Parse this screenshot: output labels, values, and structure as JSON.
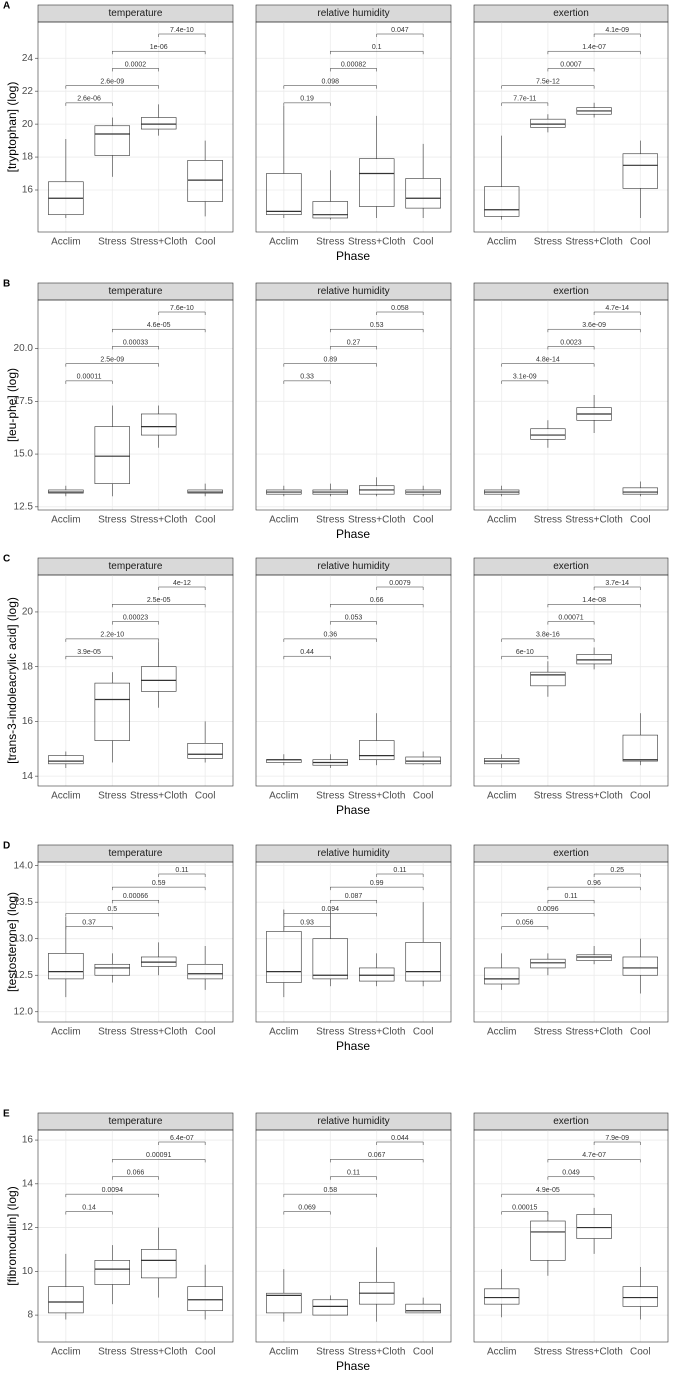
{
  "chart_data": [
    {
      "type": "box",
      "panel_label": "A",
      "ylabel": "[tryptophan] (log)",
      "xlabel": "Phase",
      "categories": [
        "Acclim",
        "Stress",
        "Stress+Cloth",
        "Cool"
      ],
      "ylim": [
        13.45,
        26.2
      ],
      "yticks": [
        16,
        18,
        20,
        22,
        24
      ],
      "grid": true,
      "facets": [
        {
          "title": "temperature",
          "boxes": [
            [
              14.3,
              14.5,
              15.5,
              16.5,
              19.1
            ],
            [
              16.8,
              18.1,
              19.4,
              19.9,
              20.4
            ],
            [
              19.3,
              19.7,
              20.0,
              20.4,
              21.2
            ],
            [
              14.4,
              15.3,
              16.6,
              17.8,
              19.0
            ]
          ],
          "pvalues": [
            "2.6e-06",
            "2.6e-09",
            "0.0002",
            "1e-06",
            "7.4e-10"
          ]
        },
        {
          "title": "relative humidity",
          "boxes": [
            [
              14.3,
              14.5,
              14.7,
              17.0,
              21.1
            ],
            [
              14.2,
              14.3,
              14.5,
              15.3,
              17.2
            ],
            [
              14.3,
              15.0,
              17.0,
              17.9,
              20.5
            ],
            [
              14.3,
              14.9,
              15.5,
              16.7,
              18.8
            ]
          ],
          "pvalues": [
            "0.19",
            "0.098",
            "0.00082",
            "0.1",
            "0.047"
          ]
        },
        {
          "title": "exertion",
          "boxes": [
            [
              14.2,
              14.4,
              14.8,
              16.2,
              19.3
            ],
            [
              19.5,
              19.8,
              20.0,
              20.3,
              20.6
            ],
            [
              20.4,
              20.6,
              20.8,
              21.0,
              21.3
            ],
            [
              14.3,
              16.1,
              17.5,
              18.2,
              19.0
            ]
          ],
          "pvalues": [
            "7.7e-11",
            "7.5e-12",
            "0.0007",
            "1.4e-07",
            "4.1e-09"
          ]
        }
      ]
    },
    {
      "type": "box",
      "panel_label": "B",
      "ylabel": "[leu-phe] (log)",
      "xlabel": "Phase",
      "categories": [
        "Acclim",
        "Stress",
        "Stress+Cloth",
        "Cool"
      ],
      "ylim": [
        12.35,
        22.3
      ],
      "yticks": [
        12.5,
        {
          "value": 15,
          "label": "15.0"
        },
        17.5,
        {
          "value": 20,
          "label": "20.0"
        }
      ],
      "grid": true,
      "facets": [
        {
          "title": "temperature",
          "boxes": [
            [
              13.0,
              13.15,
              13.2,
              13.3,
              13.5
            ],
            [
              13.0,
              13.6,
              14.9,
              16.3,
              17.3
            ],
            [
              15.3,
              15.9,
              16.3,
              16.9,
              17.3
            ],
            [
              13.0,
              13.15,
              13.2,
              13.3,
              13.6
            ]
          ],
          "pvalues": [
            "0.00011",
            "2.5e-09",
            "0.00033",
            "4.6e-05",
            "7.6e-10"
          ]
        },
        {
          "title": "relative humidity",
          "boxes": [
            [
              13.0,
              13.1,
              13.2,
              13.3,
              13.5
            ],
            [
              13.0,
              13.1,
              13.2,
              13.3,
              13.6
            ],
            [
              13.0,
              13.1,
              13.3,
              13.5,
              13.9
            ],
            [
              13.0,
              13.1,
              13.2,
              13.3,
              13.5
            ]
          ],
          "pvalues": [
            "0.33",
            "0.89",
            "0.27",
            "0.53",
            "0.058"
          ]
        },
        {
          "title": "exertion",
          "boxes": [
            [
              13.0,
              13.1,
              13.2,
              13.3,
              13.5
            ],
            [
              15.3,
              15.7,
              15.9,
              16.2,
              16.6
            ],
            [
              16.0,
              16.6,
              16.9,
              17.2,
              17.8
            ],
            [
              13.0,
              13.1,
              13.2,
              13.4,
              13.7
            ]
          ],
          "pvalues": [
            "3.1e-09",
            "4.8e-14",
            "0.0023",
            "3.6e-09",
            "4.7e-14"
          ]
        }
      ]
    },
    {
      "type": "box",
      "panel_label": "C",
      "ylabel": "[trans-3-indoleacrylic acid] (log)",
      "xlabel": "Phase",
      "categories": [
        "Acclim",
        "Stress",
        "Stress+Cloth",
        "Cool"
      ],
      "ylim": [
        13.64,
        21.35
      ],
      "yticks": [
        14,
        16,
        18,
        20
      ],
      "grid": true,
      "facets": [
        {
          "title": "temperature",
          "boxes": [
            [
              14.3,
              14.45,
              14.55,
              14.75,
              14.9
            ],
            [
              14.5,
              15.3,
              16.8,
              17.4,
              17.8
            ],
            [
              16.5,
              17.1,
              17.5,
              18.0,
              18.9
            ],
            [
              14.5,
              14.65,
              14.8,
              15.2,
              16.0
            ]
          ],
          "pvalues": [
            "3.9e-05",
            "2.2e-10",
            "0.00023",
            "2.5e-05",
            "4e-12"
          ]
        },
        {
          "title": "relative humidity",
          "boxes": [
            [
              14.4,
              14.5,
              14.6,
              14.6,
              14.8
            ],
            [
              14.3,
              14.4,
              14.5,
              14.6,
              14.8
            ],
            [
              14.4,
              14.6,
              14.75,
              15.3,
              16.3
            ],
            [
              14.4,
              14.45,
              14.55,
              14.7,
              14.9
            ]
          ],
          "pvalues": [
            "0.44",
            "0.36",
            "0.053",
            "0.66",
            "0.0079"
          ]
        },
        {
          "title": "exertion",
          "boxes": [
            [
              14.3,
              14.45,
              14.55,
              14.65,
              14.8
            ],
            [
              16.9,
              17.3,
              17.7,
              17.8,
              18.2
            ],
            [
              17.9,
              18.1,
              18.25,
              18.45,
              18.7
            ],
            [
              14.4,
              14.55,
              14.6,
              15.5,
              16.3
            ]
          ],
          "pvalues": [
            "6e-10",
            "3.8e-16",
            "0.00071",
            "1.4e-08",
            "3.7e-14"
          ]
        }
      ]
    },
    {
      "type": "box",
      "panel_label": "D",
      "ylabel": "[testosterone] (log)",
      "xlabel": "Phase",
      "categories": [
        "Acclim",
        "Stress",
        "Stress+Cloth",
        "Cool"
      ],
      "ylim": [
        11.86,
        14.05
      ],
      "yticks": [
        {
          "value": 12,
          "label": "12.0"
        },
        12.5,
        {
          "value": 13,
          "label": "13.0"
        },
        13.5,
        {
          "value": 14,
          "label": "14.0"
        }
      ],
      "grid": true,
      "facets": [
        {
          "title": "temperature",
          "boxes": [
            [
              12.2,
              12.45,
              12.55,
              12.8,
              13.3
            ],
            [
              12.4,
              12.5,
              12.6,
              12.65,
              12.8
            ],
            [
              12.5,
              12.62,
              12.68,
              12.75,
              12.95
            ],
            [
              12.3,
              12.45,
              12.52,
              12.65,
              12.9
            ]
          ],
          "pvalues": [
            "0.37",
            "0.5",
            "0.00066",
            "0.59",
            "0.11"
          ]
        },
        {
          "title": "relative humidity",
          "boxes": [
            [
              12.2,
              12.4,
              12.55,
              13.1,
              13.4
            ],
            [
              12.35,
              12.45,
              12.5,
              13.0,
              13.4
            ],
            [
              12.35,
              12.42,
              12.5,
              12.6,
              12.8
            ],
            [
              12.35,
              12.42,
              12.55,
              12.95,
              13.5
            ]
          ],
          "pvalues": [
            "0.93",
            "0.094",
            "0.087",
            "0.99",
            "0.11"
          ]
        },
        {
          "title": "exertion",
          "boxes": [
            [
              12.3,
              12.38,
              12.45,
              12.6,
              12.8
            ],
            [
              12.5,
              12.6,
              12.67,
              12.72,
              12.8
            ],
            [
              12.65,
              12.7,
              12.75,
              12.78,
              12.9
            ],
            [
              12.25,
              12.5,
              12.6,
              12.75,
              13.0
            ]
          ],
          "pvalues": [
            "0.056",
            "0.0096",
            "0.11",
            "0.96",
            "0.25"
          ]
        }
      ]
    },
    {
      "type": "box",
      "panel_label": "E",
      "ylabel": "[fibromodulin] (log)",
      "xlabel": "Phase",
      "categories": [
        "Acclim",
        "Stress",
        "Stress+Cloth",
        "Cool"
      ],
      "ylim": [
        6.77,
        16.46
      ],
      "yticks": [
        8,
        10,
        12,
        14,
        16
      ],
      "grid": true,
      "facets": [
        {
          "title": "temperature",
          "boxes": [
            [
              7.8,
              8.1,
              8.6,
              9.3,
              10.8
            ],
            [
              8.5,
              9.4,
              10.1,
              10.5,
              11.2
            ],
            [
              8.8,
              9.7,
              10.5,
              11.0,
              12.0
            ],
            [
              7.8,
              8.2,
              8.7,
              9.3,
              10.3
            ]
          ],
          "pvalues": [
            "0.14",
            "0.0094",
            "0.066",
            "0.00091",
            "6.4e-07"
          ]
        },
        {
          "title": "relative humidity",
          "boxes": [
            [
              7.7,
              8.1,
              8.9,
              9.0,
              10.1
            ],
            [
              8.0,
              8.0,
              8.4,
              8.7,
              8.9
            ],
            [
              7.7,
              8.5,
              9.0,
              9.5,
              11.1
            ],
            [
              8.1,
              8.1,
              8.2,
              8.5,
              8.8
            ]
          ],
          "pvalues": [
            "0.069",
            "0.58",
            "0.11",
            "0.067",
            "0.044"
          ]
        },
        {
          "title": "exertion",
          "boxes": [
            [
              7.9,
              8.5,
              8.8,
              9.2,
              10.1
            ],
            [
              9.8,
              10.5,
              11.8,
              12.3,
              12.7
            ],
            [
              10.8,
              11.5,
              12.0,
              12.6,
              12.9
            ],
            [
              7.8,
              8.4,
              8.8,
              9.3,
              10.2
            ]
          ],
          "pvalues": [
            "0.00015",
            "4.9e-05",
            "0.049",
            "4.7e-07",
            "7.9e-09"
          ]
        }
      ]
    }
  ]
}
